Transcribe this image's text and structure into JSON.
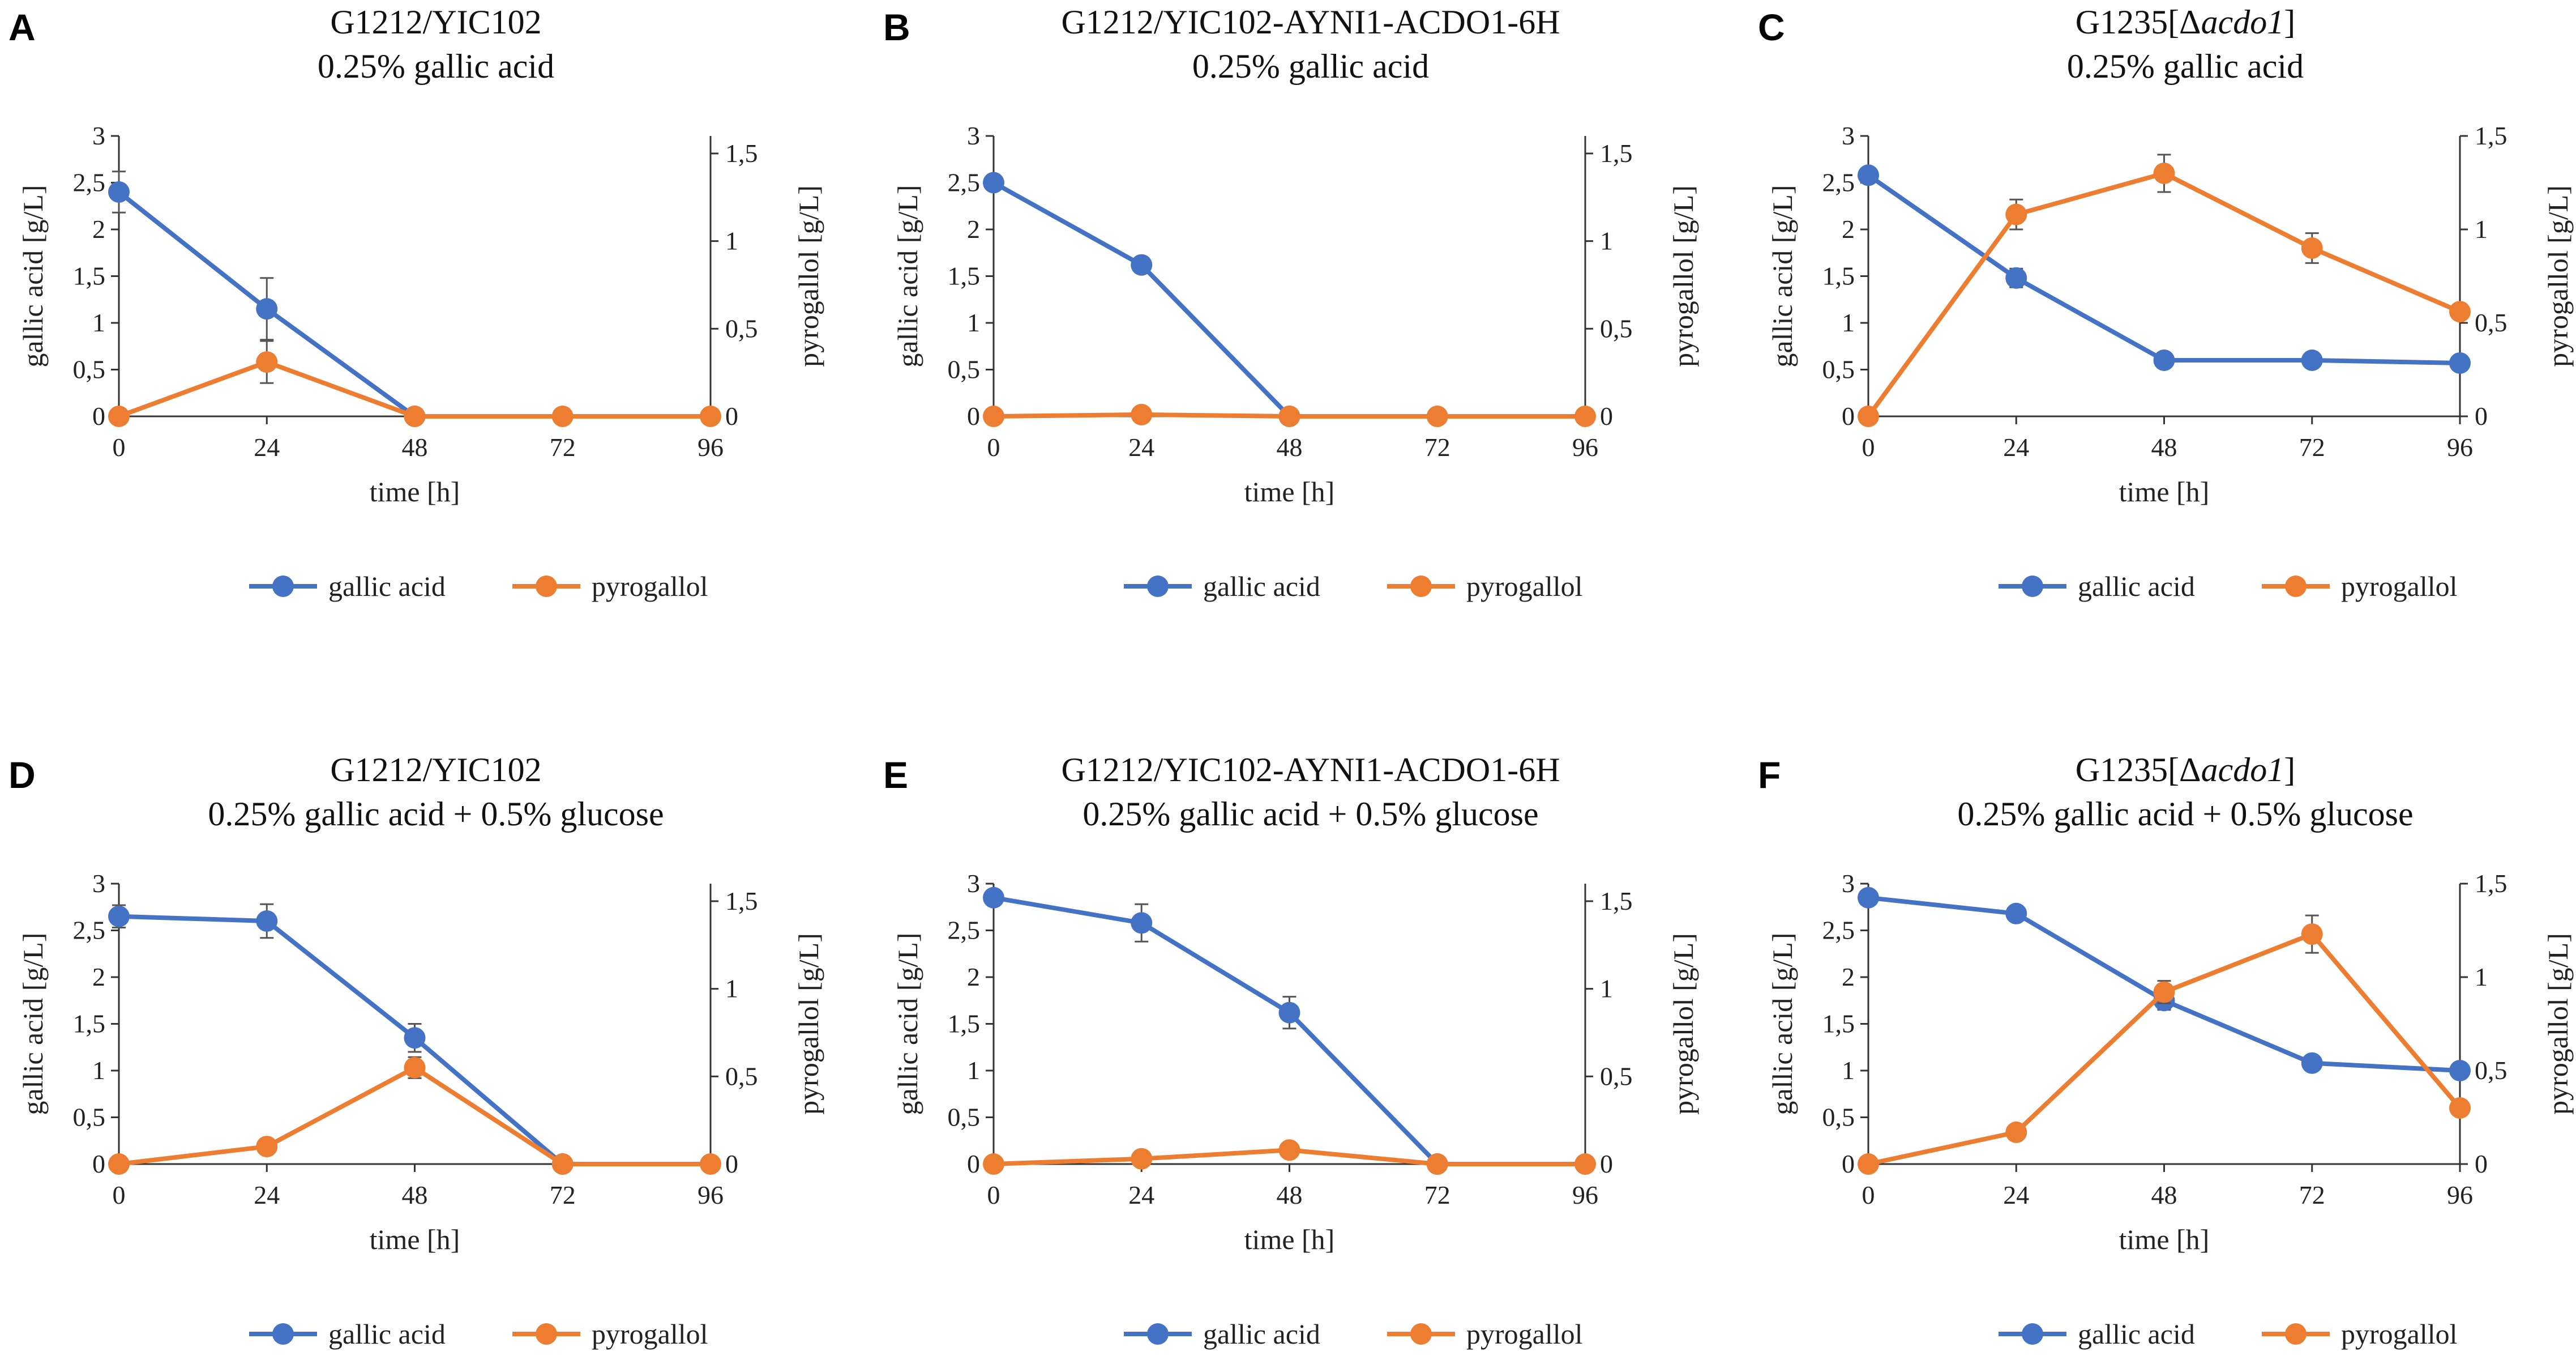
{
  "colors": {
    "gallic": "#4472C4",
    "pyrogallol": "#ED7D31",
    "axis": "#333333",
    "errorbar": "#555555"
  },
  "chart_data": [
    {
      "id": "A",
      "type": "line",
      "title": [
        "G1212/YIC102",
        "0.25% gallic acid"
      ],
      "xlabel": "time [h]",
      "ylabel": "gallic acid [g/L]",
      "y2label": "pyrogallol [g/L]",
      "x": [
        0,
        24,
        48,
        72,
        96
      ],
      "x_ticks": [
        "0",
        "24",
        "48",
        "72",
        "96"
      ],
      "ylim": [
        0,
        3
      ],
      "y_ticks": [
        "0",
        "0,5",
        "1",
        "1,5",
        "2",
        "2,5",
        "3"
      ],
      "y2lim": [
        0,
        1.6
      ],
      "y2_ticks": [
        "0",
        "0,5",
        "1",
        "1,5"
      ],
      "y2_tick_values": [
        0,
        0.5,
        1,
        1.5
      ],
      "series": [
        {
          "name": "gallic acid",
          "axis": "left",
          "x": [
            0,
            24,
            48
          ],
          "values": [
            2.4,
            1.15,
            0
          ],
          "errors": [
            0.22,
            0.33,
            0
          ]
        },
        {
          "name": "pyrogallol",
          "axis": "right",
          "x": [
            0,
            24,
            48,
            72,
            96
          ],
          "values": [
            0,
            0.31,
            0,
            0,
            0
          ],
          "errors": [
            0,
            0.12,
            0,
            0,
            0
          ]
        }
      ],
      "legend": [
        "gallic acid",
        "pyrogallol"
      ]
    },
    {
      "id": "B",
      "type": "line",
      "title": [
        "G1212/YIC102-AYNI1-ACDO1-6H",
        "0.25% gallic acid"
      ],
      "xlabel": "time [h]",
      "ylabel": "gallic acid [g/L]",
      "y2label": "pyrogallol [g/L]",
      "x": [
        0,
        24,
        48,
        72,
        96
      ],
      "x_ticks": [
        "0",
        "24",
        "48",
        "72",
        "96"
      ],
      "ylim": [
        0,
        3
      ],
      "y_ticks": [
        "0",
        "0,5",
        "1",
        "1,5",
        "2",
        "2,5",
        "3"
      ],
      "y2lim": [
        0,
        1.6
      ],
      "y2_ticks": [
        "0",
        "0,5",
        "1",
        "1,5"
      ],
      "y2_tick_values": [
        0,
        0.5,
        1,
        1.5
      ],
      "series": [
        {
          "name": "gallic acid",
          "axis": "left",
          "x": [
            0,
            24,
            48
          ],
          "values": [
            2.5,
            1.62,
            0
          ],
          "errors": [
            0,
            0.08,
            0
          ]
        },
        {
          "name": "pyrogallol",
          "axis": "right",
          "x": [
            0,
            24,
            48,
            72,
            96
          ],
          "values": [
            0,
            0.01,
            0,
            0,
            0
          ],
          "errors": [
            0,
            0,
            0,
            0,
            0
          ]
        }
      ],
      "legend": [
        "gallic acid",
        "pyrogallol"
      ]
    },
    {
      "id": "C",
      "type": "line",
      "title": [
        "G1235[Δacdo1]",
        "0.25% gallic acid"
      ],
      "title_prefix": "G1235[Δ",
      "title_italic": "acdo1",
      "title_suffix": "]",
      "xlabel": "time [h]",
      "ylabel": "gallic acid [g/L]",
      "y2label": "pyrogallol [g/L]",
      "x": [
        0,
        24,
        48,
        72,
        96
      ],
      "x_ticks": [
        "0",
        "24",
        "48",
        "72",
        "96"
      ],
      "ylim": [
        0,
        3
      ],
      "y_ticks": [
        "0",
        "0,5",
        "1",
        "1,5",
        "2",
        "2,5",
        "3"
      ],
      "y2lim": [
        0,
        1.5
      ],
      "y2_ticks": [
        "0",
        "0,5",
        "1",
        "1,5"
      ],
      "y2_tick_values": [
        0,
        0.5,
        1,
        1.5
      ],
      "series": [
        {
          "name": "gallic acid",
          "axis": "left",
          "x": [
            0,
            24,
            48,
            72,
            96
          ],
          "values": [
            2.58,
            1.48,
            0.6,
            0.6,
            0.57
          ],
          "errors": [
            0.05,
            0.1,
            0.03,
            0.03,
            0.03
          ]
        },
        {
          "name": "pyrogallol",
          "axis": "right",
          "x": [
            0,
            24,
            48,
            72,
            96
          ],
          "values": [
            0,
            1.08,
            1.3,
            0.9,
            0.56
          ],
          "errors": [
            0,
            0.08,
            0.1,
            0.08,
            0.04
          ]
        }
      ],
      "legend": [
        "gallic acid",
        "pyrogallol"
      ]
    },
    {
      "id": "D",
      "type": "line",
      "title": [
        "G1212/YIC102",
        "0.25% gallic acid + 0.5% glucose"
      ],
      "xlabel": "time [h]",
      "ylabel": "gallic acid [g/L]",
      "y2label": "pyrogallol [g/L]",
      "x": [
        0,
        24,
        48,
        72,
        96
      ],
      "x_ticks": [
        "0",
        "24",
        "48",
        "72",
        "96"
      ],
      "ylim": [
        0,
        3
      ],
      "y_ticks": [
        "0",
        "0,5",
        "1",
        "1,5",
        "2",
        "2,5",
        "3"
      ],
      "y2lim": [
        0,
        1.6
      ],
      "y2_ticks": [
        "0",
        "0,5",
        "1",
        "1,5"
      ],
      "y2_tick_values": [
        0,
        0.5,
        1,
        1.5
      ],
      "series": [
        {
          "name": "gallic acid",
          "axis": "left",
          "x": [
            0,
            24,
            48,
            72
          ],
          "values": [
            2.65,
            2.6,
            1.35,
            0
          ],
          "errors": [
            0.12,
            0.18,
            0.15,
            0
          ]
        },
        {
          "name": "pyrogallol",
          "axis": "right",
          "x": [
            0,
            24,
            48,
            72,
            96
          ],
          "values": [
            0,
            0.1,
            0.55,
            0,
            0
          ],
          "errors": [
            0,
            0,
            0.06,
            0,
            0
          ]
        }
      ],
      "legend": [
        "gallic acid",
        "pyrogallol"
      ]
    },
    {
      "id": "E",
      "type": "line",
      "title": [
        "G1212/YIC102-AYNI1-ACDO1-6H",
        "0.25% gallic acid + 0.5% glucose"
      ],
      "xlabel": "time [h]",
      "ylabel": "gallic acid [g/L]",
      "y2label": "pyrogallol [g/L]",
      "x": [
        0,
        24,
        48,
        72,
        96
      ],
      "x_ticks": [
        "0",
        "24",
        "48",
        "72",
        "96"
      ],
      "ylim": [
        0,
        3
      ],
      "y_ticks": [
        "0",
        "0,5",
        "1",
        "1,5",
        "2",
        "2,5",
        "3"
      ],
      "y2lim": [
        0,
        1.6
      ],
      "y2_ticks": [
        "0",
        "0,5",
        "1",
        "1,5"
      ],
      "y2_tick_values": [
        0,
        0.5,
        1,
        1.5
      ],
      "series": [
        {
          "name": "gallic acid",
          "axis": "left",
          "x": [
            0,
            24,
            48,
            72
          ],
          "values": [
            2.85,
            2.58,
            1.62,
            0
          ],
          "errors": [
            0.05,
            0.2,
            0.17,
            0
          ]
        },
        {
          "name": "pyrogallol",
          "axis": "right",
          "x": [
            0,
            24,
            48,
            72,
            96
          ],
          "values": [
            0,
            0.03,
            0.08,
            0,
            0
          ],
          "errors": [
            0,
            0,
            0,
            0,
            0
          ]
        }
      ],
      "legend": [
        "gallic acid",
        "pyrogallol"
      ]
    },
    {
      "id": "F",
      "type": "line",
      "title": [
        "G1235[Δacdo1]",
        "0.25% gallic acid + 0.5% glucose"
      ],
      "title_prefix": "G1235[Δ",
      "title_italic": "acdo1",
      "title_suffix": "]",
      "xlabel": "time [h]",
      "ylabel": "gallic acid [g/L]",
      "y2label": "pyrogallol [g/L]",
      "x": [
        0,
        24,
        48,
        72,
        96
      ],
      "x_ticks": [
        "0",
        "24",
        "48",
        "72",
        "96"
      ],
      "ylim": [
        0,
        3
      ],
      "y_ticks": [
        "0",
        "0,5",
        "1",
        "1,5",
        "2",
        "2,5",
        "3"
      ],
      "y2lim": [
        0,
        1.5
      ],
      "y2_ticks": [
        "0",
        "0,5",
        "1",
        "1,5"
      ],
      "y2_tick_values": [
        0,
        0.5,
        1,
        1.5
      ],
      "series": [
        {
          "name": "gallic acid",
          "axis": "left",
          "x": [
            0,
            24,
            48,
            72,
            96
          ],
          "values": [
            2.85,
            2.68,
            1.75,
            1.08,
            1.0
          ],
          "errors": [
            0.03,
            0.05,
            0.1,
            0.08,
            0.04
          ]
        },
        {
          "name": "pyrogallol",
          "axis": "right",
          "x": [
            0,
            24,
            48,
            72,
            96
          ],
          "values": [
            0,
            0.17,
            0.92,
            1.23,
            0.3
          ],
          "errors": [
            0,
            0,
            0.06,
            0.1,
            0.03
          ]
        }
      ],
      "legend": [
        "gallic acid",
        "pyrogallol"
      ]
    }
  ]
}
